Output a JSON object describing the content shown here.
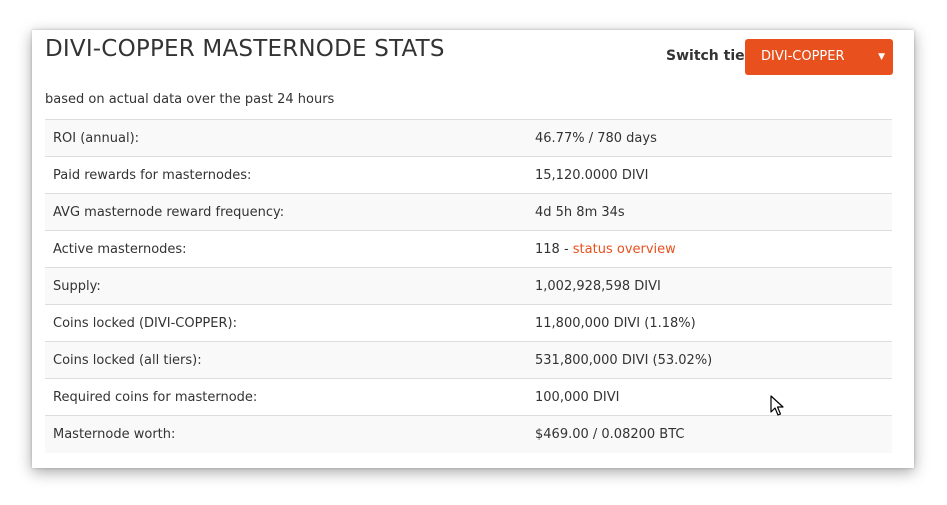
{
  "header": {
    "title": "DIVI-COPPER MASTERNODE STATS",
    "switch_tier_label": "Switch tier:",
    "selected_tier": "DIVI-COPPER",
    "subtitle": "based on actual data over the past 24 hours"
  },
  "stats": [
    {
      "label": "ROI (annual):",
      "value": "46.77% / 780 days"
    },
    {
      "label": "Paid rewards for masternodes:",
      "value": "15,120.0000 DIVI"
    },
    {
      "label": "AVG masternode reward frequency:",
      "value": "4d 5h 8m 34s"
    },
    {
      "label": "Active masternodes:",
      "value": "118 - ",
      "link": "status overview"
    },
    {
      "label": "Supply:",
      "value": "1,002,928,598 DIVI"
    },
    {
      "label": "Coins locked (DIVI-COPPER):",
      "value": "11,800,000 DIVI (1.18%)"
    },
    {
      "label": "Coins locked (all tiers):",
      "value": "531,800,000 DIVI (53.02%)"
    },
    {
      "label": "Required coins for masternode:",
      "value": "100,000 DIVI"
    },
    {
      "label": "Masternode worth:",
      "value": "$469.00 / 0.08200 BTC"
    }
  ],
  "icons": {
    "dropdown": "chevron-down-icon",
    "cursor": "mouse-pointer-icon"
  },
  "colors": {
    "accent": "#e8501e",
    "text": "#333333",
    "row_stripe": "#f9f9f9",
    "border": "#dddddd"
  }
}
